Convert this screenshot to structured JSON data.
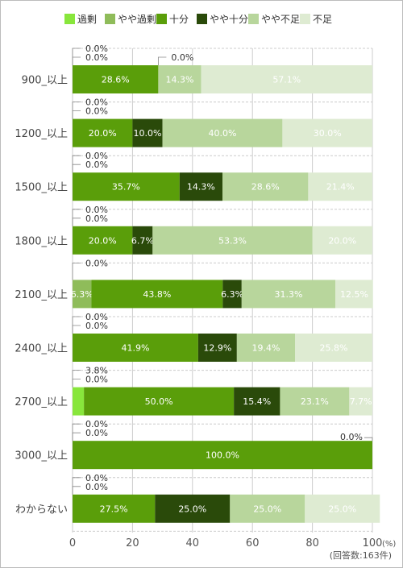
{
  "chart_data": {
    "type": "bar",
    "stacked": true,
    "orientation": "horizontal",
    "categories": [
      "900_以上",
      "1200_以上",
      "1500_以上",
      "1800_以上",
      "2100_以上",
      "2400_以上",
      "2700_以上",
      "3000_以上",
      "わからない"
    ],
    "series": [
      {
        "name": "過剰",
        "color": "#88e63c",
        "values": [
          0.0,
          0.0,
          0.0,
          0.0,
          0.0,
          0.0,
          3.8,
          0.0,
          0.0
        ]
      },
      {
        "name": "やや過剰",
        "color": "#8fbc5a",
        "values": [
          0.0,
          0.0,
          0.0,
          0.0,
          6.3,
          0.0,
          0.0,
          0.0,
          0.0
        ]
      },
      {
        "name": "十分",
        "color": "#5a9e0a",
        "values": [
          28.6,
          20.0,
          35.7,
          20.0,
          43.8,
          41.9,
          50.0,
          100.0,
          27.5
        ]
      },
      {
        "name": "やや十分",
        "color": "#2a4a0a",
        "values": [
          0.0,
          10.0,
          14.3,
          6.7,
          6.3,
          12.9,
          15.4,
          0.0,
          25.0
        ]
      },
      {
        "name": "やや不足",
        "color": "#b8d69c",
        "values": [
          14.3,
          40.0,
          28.6,
          53.3,
          31.3,
          19.4,
          23.1,
          0.0,
          25.0
        ]
      },
      {
        "name": "不足",
        "color": "#deebd2",
        "values": [
          57.1,
          30.0,
          21.4,
          20.0,
          12.5,
          25.8,
          7.7,
          0.0,
          25.0
        ]
      }
    ],
    "xlim": [
      0,
      100
    ],
    "xticks": [
      0,
      20,
      40,
      60,
      80,
      100
    ],
    "x_unit": "(%)",
    "note": "(回答数:163件)",
    "legend_position": "top",
    "grid": true
  }
}
